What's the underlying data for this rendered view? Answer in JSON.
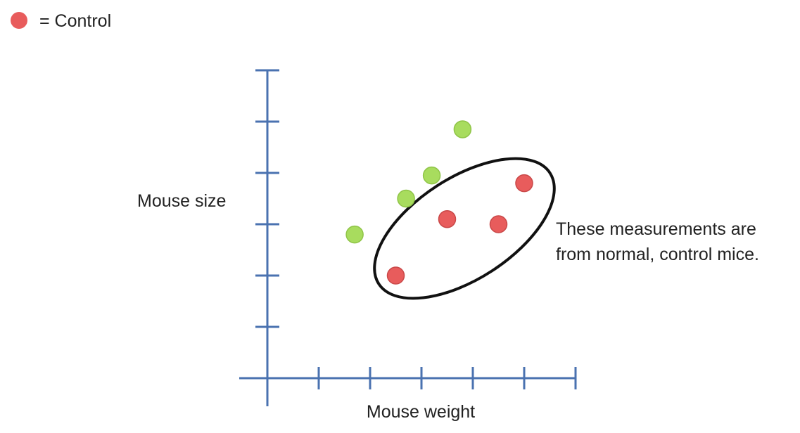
{
  "legend": {
    "marker_color": "#e85c5c",
    "label": "= Control"
  },
  "chart_data": {
    "type": "scatter",
    "xlabel": "Mouse weight",
    "ylabel": "Mouse size",
    "xlim": [
      0,
      6
    ],
    "ylim": [
      0,
      6
    ],
    "grid": false,
    "axis_color": "#4a72b0",
    "series": [
      {
        "name": "Control",
        "color": "#e85c5c",
        "points": [
          {
            "x": 2.5,
            "y": 2.0
          },
          {
            "x": 3.5,
            "y": 3.1
          },
          {
            "x": 4.5,
            "y": 3.0
          },
          {
            "x": 5.0,
            "y": 3.8
          }
        ]
      },
      {
        "color": "#a8dc5e",
        "points": [
          {
            "x": 1.7,
            "y": 2.8
          },
          {
            "x": 2.7,
            "y": 3.5
          },
          {
            "x": 3.2,
            "y": 3.95
          },
          {
            "x": 3.8,
            "y": 4.85
          }
        ]
      }
    ],
    "annotation": {
      "lines": [
        "These measurements are",
        "from normal, control mice."
      ]
    }
  }
}
